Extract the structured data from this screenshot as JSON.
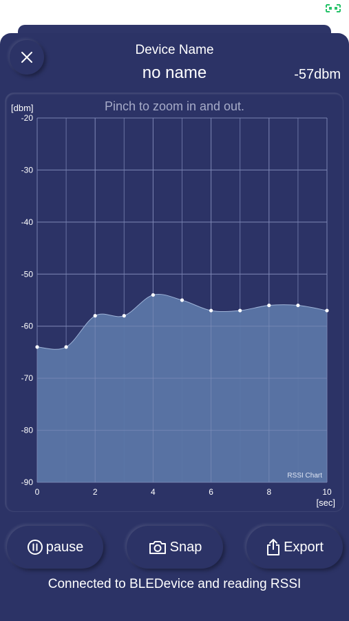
{
  "header": {
    "close_icon": "close-icon",
    "device_label": "Device Name",
    "device_name": "no name",
    "rssi_value": "-57dbm"
  },
  "chart": {
    "hint": "Pinch to zoom in and out.",
    "chart_label": "RSSI Chart"
  },
  "chart_data": {
    "type": "area",
    "title": "",
    "xlabel": "[sec]",
    "ylabel": "[dbm]",
    "xlim": [
      0,
      10
    ],
    "ylim": [
      -90,
      -20
    ],
    "xticks": [
      "0",
      "2",
      "4",
      "6",
      "8",
      "10"
    ],
    "yticks": [
      "-20",
      "-30",
      "-40",
      "-50",
      "-60",
      "-70",
      "-80",
      "-90"
    ],
    "grid": true,
    "fill_color": "#5b76a6",
    "series": [
      {
        "x": [
          0,
          1,
          2,
          3,
          4,
          5,
          6,
          7,
          8,
          9,
          10
        ],
        "y": [
          -64,
          -64,
          -58,
          -58,
          -54,
          -55,
          -57,
          -57,
          -56,
          -56,
          -57
        ]
      }
    ]
  },
  "buttons": {
    "pause_label": "pause",
    "snap_label": "Snap",
    "export_label": "Export"
  },
  "status": {
    "text": "Connected to BLEDevice and reading RSSI"
  },
  "colors": {
    "background": "#2c3366",
    "accent": "#27c36a",
    "fill": "#5b76a6",
    "text": "#ffffff"
  }
}
